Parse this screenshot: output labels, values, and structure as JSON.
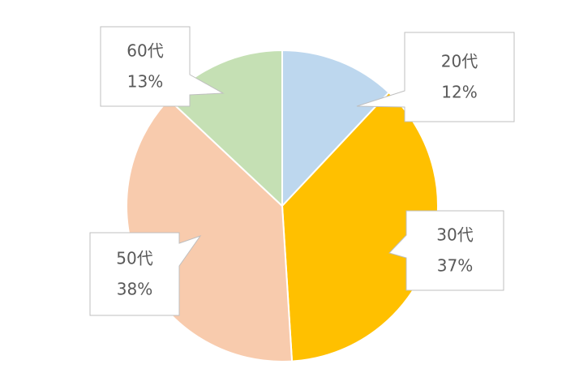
{
  "chart_data": {
    "type": "pie",
    "categories": [
      "20代",
      "30代",
      "50代",
      "60代"
    ],
    "values": [
      12,
      37,
      38,
      13
    ],
    "value_labels": [
      "12%",
      "37%",
      "38%",
      "13%"
    ],
    "colors": [
      "#bdd7ee",
      "#ffc000",
      "#f8cbad",
      "#c5e0b4"
    ]
  }
}
